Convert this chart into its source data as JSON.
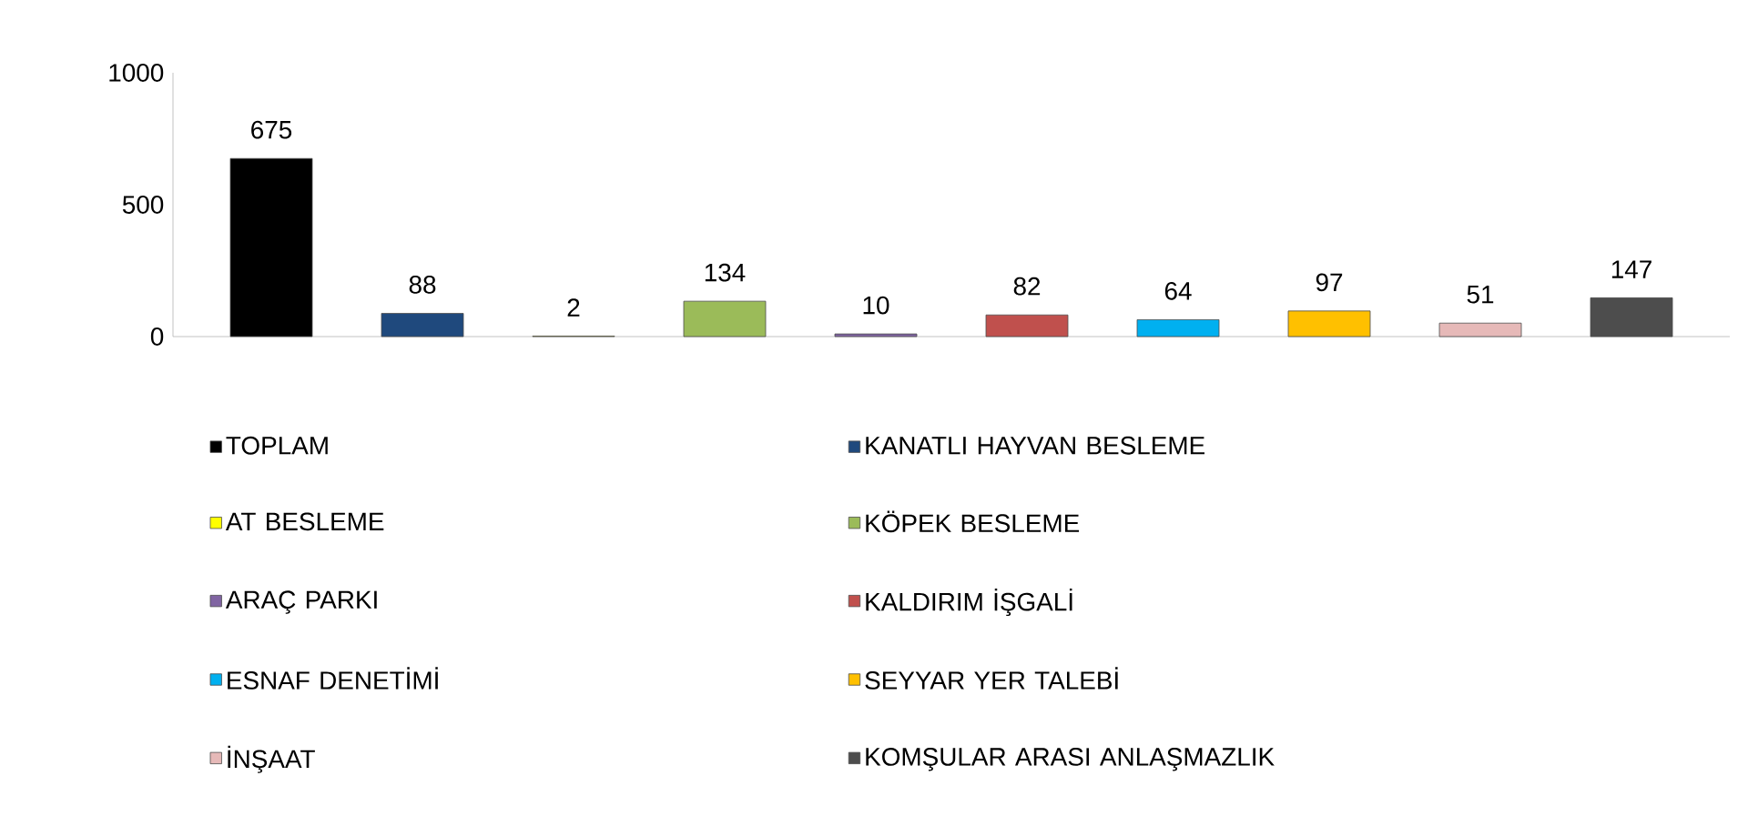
{
  "chart_data": {
    "type": "bar",
    "categories": [
      null
    ],
    "ylim": [
      0,
      1000
    ],
    "yticks": [
      0,
      500,
      1000
    ],
    "tick_labels": "y",
    "grid": false,
    "legend": "bottom",
    "data_labels": true,
    "series": [
      {
        "name": "TOPLAM",
        "color": "#000000",
        "values": [
          675
        ]
      },
      {
        "name": "KANATLI HAYVAN BESLEME",
        "color": "#1f497d",
        "values": [
          88
        ]
      },
      {
        "name": "AT BESLEME",
        "color": "#ffff00",
        "values": [
          2
        ]
      },
      {
        "name": "KÖPEK BESLEME",
        "color": "#9bbb59",
        "values": [
          134
        ]
      },
      {
        "name": "ARAÇ PARKI",
        "color": "#8064a2",
        "values": [
          10
        ]
      },
      {
        "name": "KALDIRIM İŞGALİ",
        "color": "#c0504d",
        "values": [
          82
        ]
      },
      {
        "name": "ESNAF DENETİMİ",
        "color": "#00b0f0",
        "values": [
          64
        ]
      },
      {
        "name": "SEYYAR YER TALEBİ",
        "color": "#ffc000",
        "values": [
          97
        ]
      },
      {
        "name": "İNŞAAT",
        "color": "#e6b9b8",
        "values": [
          51
        ]
      },
      {
        "name": "KOMŞULAR ARASI ANLAŞMAZLIK",
        "color": "#4d4d4d",
        "values": [
          147
        ]
      }
    ]
  }
}
